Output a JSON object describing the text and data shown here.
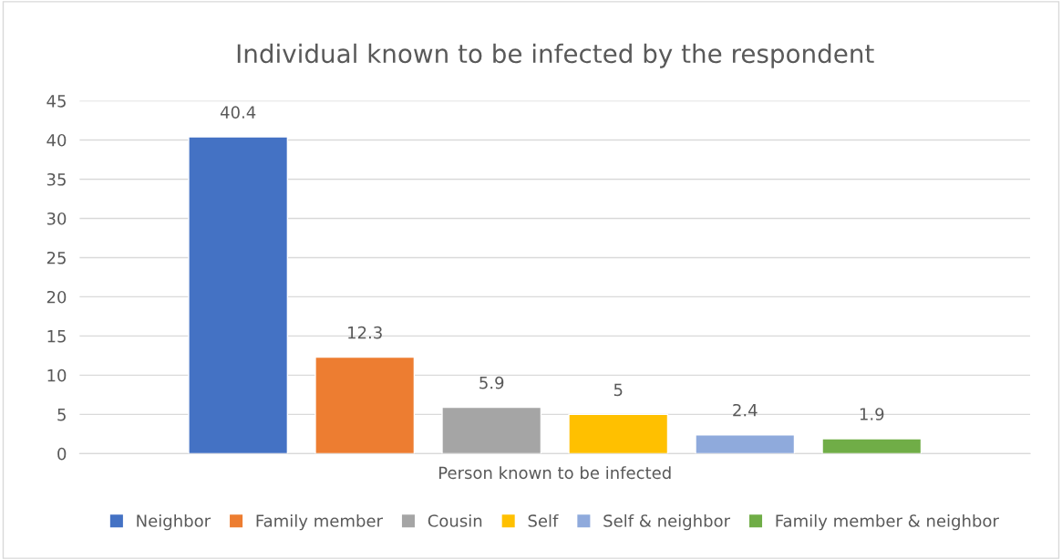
{
  "chart_data": {
    "type": "bar",
    "title": "Individual known to be infected by the respondent",
    "categories": [
      "Person known to be infected"
    ],
    "series": [
      {
        "name": "Neighbor",
        "color": "#4472c4",
        "values": [
          40.4
        ]
      },
      {
        "name": "Family member",
        "color": "#ed7d31",
        "values": [
          12.3
        ]
      },
      {
        "name": "Cousin",
        "color": "#a5a5a5",
        "values": [
          5.9
        ]
      },
      {
        "name": "Self",
        "color": "#ffc000",
        "values": [
          5
        ]
      },
      {
        "name": "Self & neighbor",
        "color": "#8faadc",
        "values": [
          2.4
        ]
      },
      {
        "name": "Family member & neighbor",
        "color": "#70ad47",
        "values": [
          1.9
        ]
      }
    ],
    "ylim": [
      0,
      45
    ],
    "yticks": [
      0,
      5,
      10,
      15,
      20,
      25,
      30,
      35,
      40,
      45
    ],
    "grid": "y",
    "legend": "bottom",
    "data_labels": true
  }
}
